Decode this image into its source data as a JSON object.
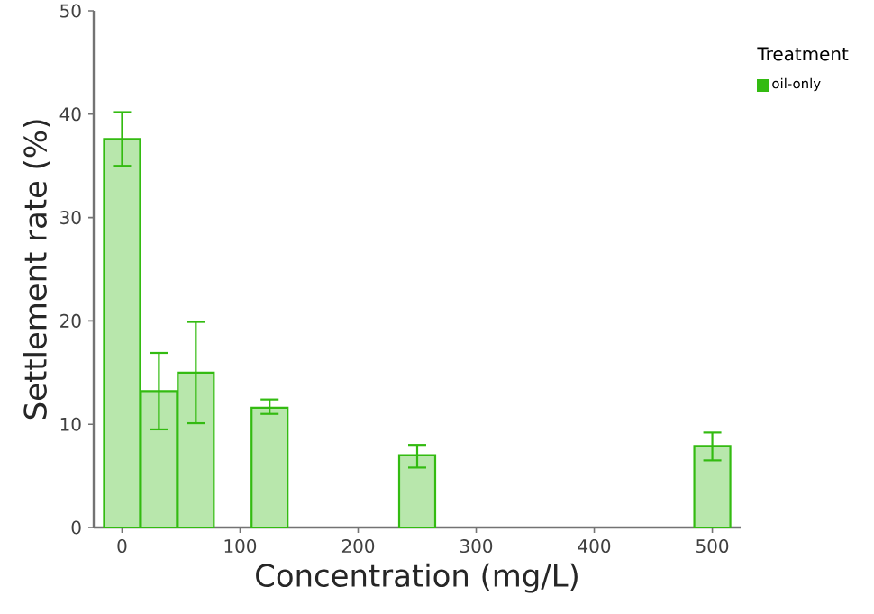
{
  "chart_data": {
    "type": "bar",
    "xlabel": "Concentration (mg/L)",
    "ylabel": "Settlement rate (%)",
    "legend_title": "Treatment",
    "x": [
      0,
      31.25,
      62.5,
      125,
      250,
      500
    ],
    "series": [
      {
        "name": "oil-only",
        "color": "#33bb11",
        "values": [
          37.6,
          13.2,
          15.0,
          11.6,
          7.0,
          7.9
        ],
        "errors": [
          [
            35.0,
            40.2
          ],
          [
            9.5,
            16.9
          ],
          [
            10.1,
            19.9
          ],
          [
            11.0,
            12.4
          ],
          [
            5.8,
            8.0
          ],
          [
            6.5,
            9.2
          ]
        ]
      }
    ],
    "xlim": [
      -24,
      524
    ],
    "ylim": [
      0,
      50
    ],
    "xticks": [
      0,
      100,
      200,
      300,
      400,
      500
    ],
    "yticks": [
      0,
      10,
      20,
      30,
      40,
      50
    ],
    "grid": false,
    "legend": "right"
  }
}
